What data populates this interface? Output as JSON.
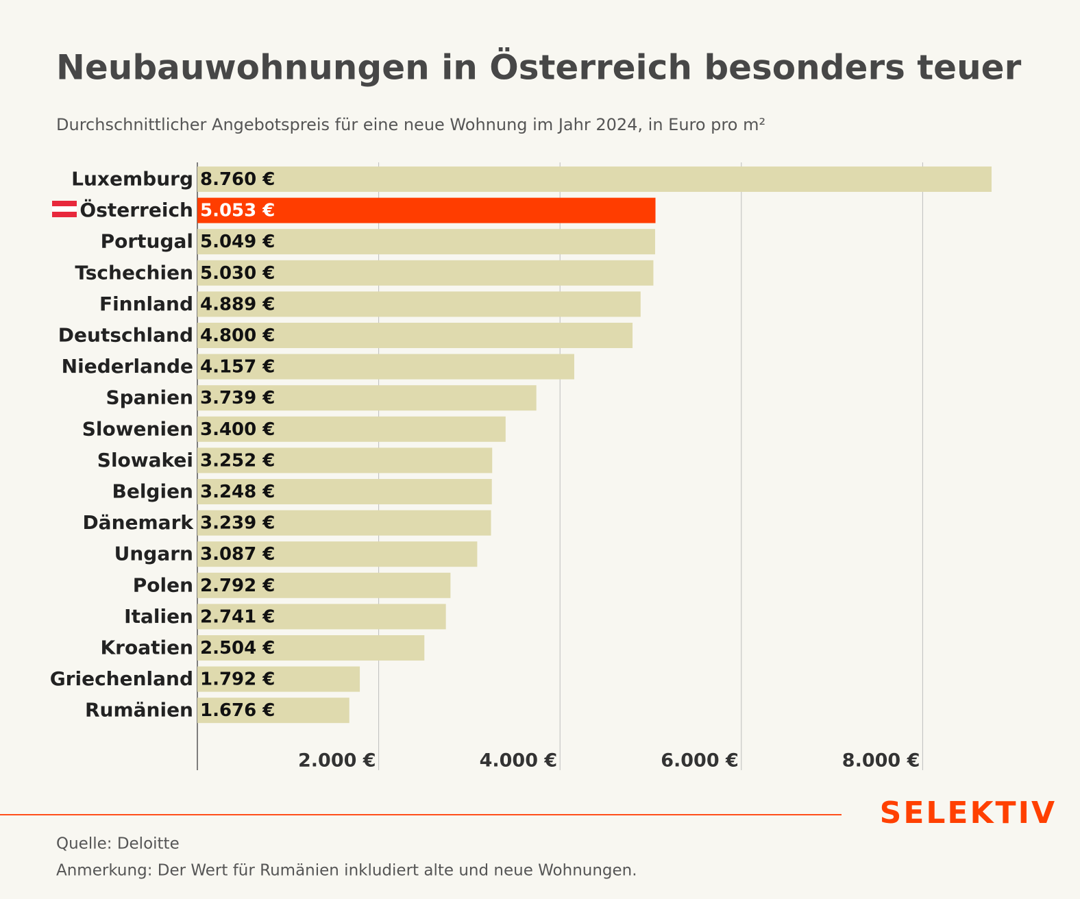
{
  "chart_data": {
    "type": "hbar",
    "title": "Neubauwohnungen in Österreich besonders teuer",
    "subtitle": "Durchschnittlicher Angebotspreis für eine neue Wohnung im Jahr 2024, in Euro pro m²",
    "categories": [
      "Luxemburg",
      "Österreich",
      "Portugal",
      "Tschechien",
      "Finnland",
      "Deutschland",
      "Niederlande",
      "Spanien",
      "Slowenien",
      "Slowakei",
      "Belgien",
      "Dänemark",
      "Ungarn",
      "Polen",
      "Italien",
      "Kroatien",
      "Griechenland",
      "Rumänien"
    ],
    "values": [
      8760,
      5053,
      5049,
      5030,
      4889,
      4800,
      4157,
      3739,
      3400,
      3252,
      3248,
      3239,
      3087,
      2792,
      2741,
      2504,
      1792,
      1676
    ],
    "value_labels": [
      "8.760 €",
      "5.053 €",
      "5.049 €",
      "5.030 €",
      "4.889 €",
      "4.800 €",
      "4.157 €",
      "3.739 €",
      "3.400 €",
      "3.252 €",
      "3.248 €",
      "3.239 €",
      "3.087 €",
      "2.792 €",
      "2.741 €",
      "2.504 €",
      "1.792 €",
      "1.676 €"
    ],
    "colors": [
      "#dfdaae",
      "#ff3d00",
      "#dfdaae",
      "#dfdaae",
      "#dfdaae",
      "#dfdaae",
      "#dfdaae",
      "#dfdaae",
      "#dfdaae",
      "#dfdaae",
      "#dfdaae",
      "#dfdaae",
      "#dfdaae",
      "#dfdaae",
      "#dfdaae",
      "#dfdaae",
      "#dfdaae",
      "#dfdaae"
    ],
    "xlim": [
      0,
      9000
    ],
    "xticks": [
      {
        "value": 2000,
        "label": "2.000 €"
      },
      {
        "value": 4000,
        "label": "4.000 €"
      },
      {
        "value": 6000,
        "label": "6.000 €"
      },
      {
        "value": 8000,
        "label": "8.000 €"
      }
    ],
    "grid": true,
    "source": "Quelle: Deloitte",
    "note": "Anmerkung: Der Wert für Rumänien inkludiert alte und neue Wohnungen."
  },
  "brand": "SELEKTIV"
}
